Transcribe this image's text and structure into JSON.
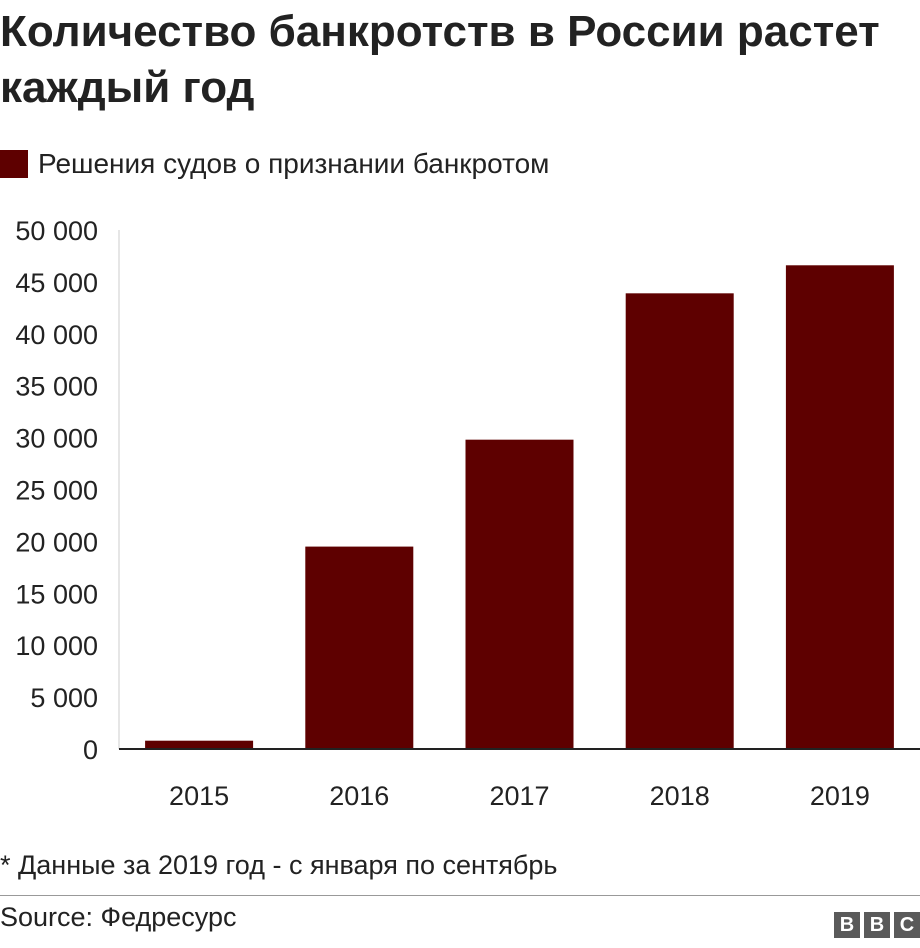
{
  "title": "Количество банкротств в России растет каждый год",
  "footnote": "* Данные за 2019 год - с января по сентябрь",
  "source": "Source: Федресурс",
  "logo": [
    "B",
    "B",
    "C"
  ],
  "colors": {
    "bar": "#5e0000",
    "text": "#222222",
    "axis": "#222222",
    "divider": "#999999"
  },
  "chart_data": {
    "type": "bar",
    "title": "Количество банкротств в России растет каждый год",
    "xlabel": "",
    "ylabel": "",
    "categories": [
      "2015",
      "2016",
      "2017",
      "2018",
      "2019"
    ],
    "series": [
      {
        "name": "Решения судов о признании банкротом",
        "values": [
          800,
          19500,
          29800,
          43900,
          46600
        ]
      }
    ],
    "ylim": [
      0,
      50000
    ],
    "yticks": [
      0,
      5000,
      10000,
      15000,
      20000,
      25000,
      30000,
      35000,
      40000,
      45000,
      50000
    ],
    "ytick_labels": [
      "0",
      "5 000",
      "10 000",
      "15 000",
      "20 000",
      "25 000",
      "30 000",
      "35 000",
      "40 000",
      "45 000",
      "50 000"
    ],
    "grid": false,
    "legend": "top-left"
  }
}
